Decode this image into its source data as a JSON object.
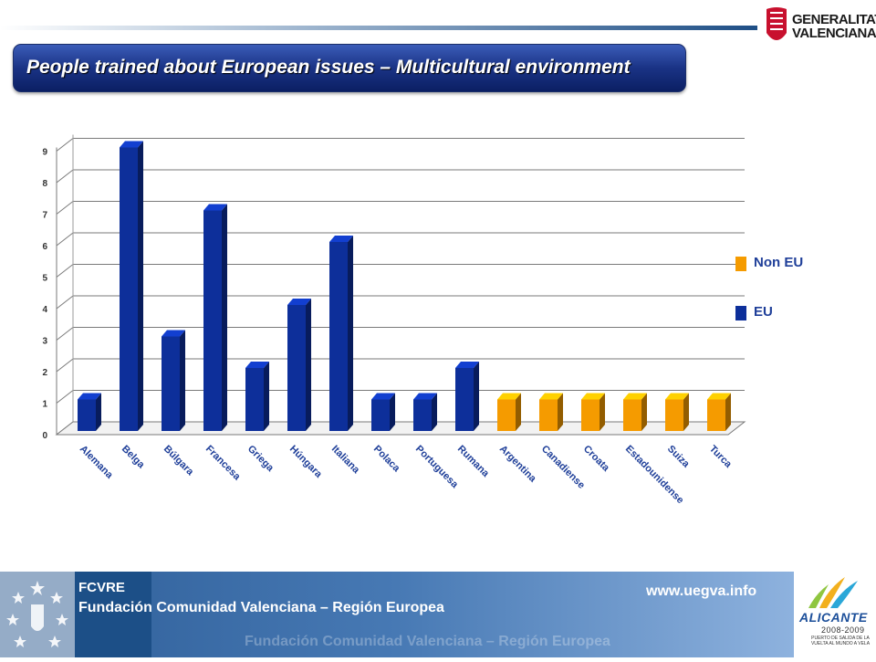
{
  "header": {
    "title": "People trained about European issues – Multicultural environment",
    "logo_text": "GENERALITAT VALENCIANA"
  },
  "colors": {
    "eu": "#0d2f9a",
    "non_eu": "#f59b00",
    "title_bg": "#1a3385"
  },
  "chart_data": {
    "type": "bar",
    "style": "3d-column",
    "categories": [
      "Alemana",
      "Belga",
      "Búlgara",
      "Francesa",
      "Griega",
      "Húngara",
      "Italiana",
      "Polaca",
      "Portuguesa",
      "Rumana",
      "Argentina",
      "Canadiense",
      "Croata",
      "Estadounidense",
      "Suiza",
      "Turca"
    ],
    "groups": [
      "EU",
      "EU",
      "EU",
      "EU",
      "EU",
      "EU",
      "EU",
      "EU",
      "EU",
      "EU",
      "Non EU",
      "Non EU",
      "Non EU",
      "Non EU",
      "Non EU",
      "Non EU"
    ],
    "values": [
      1,
      9,
      3,
      7,
      2,
      4,
      6,
      1,
      1,
      2,
      1,
      1,
      1,
      1,
      1,
      1
    ],
    "ylim": [
      0,
      9
    ],
    "yticks": [
      "0",
      "1",
      "2",
      "3",
      "4",
      "5",
      "6",
      "7",
      "8",
      "9"
    ],
    "grid": true,
    "legend": {
      "position": "right",
      "entries": [
        {
          "name": "Non EU",
          "color": "#f59b00"
        },
        {
          "name": "EU",
          "color": "#0d2f9a"
        }
      ]
    }
  },
  "footer": {
    "org_short": "FCVRE",
    "org_name": "Fundación Comunidad Valenciana – Región Europea",
    "url": "www.uegva.info",
    "ghost_text": "Fundación Comunidad Valenciana – Región Europea",
    "badge_name": "ALICANTE",
    "badge_years": "2008-2009",
    "badge_sub": "PUERTO DE SALIDA DE LA VUELTA AL MUNDO A VELA"
  }
}
